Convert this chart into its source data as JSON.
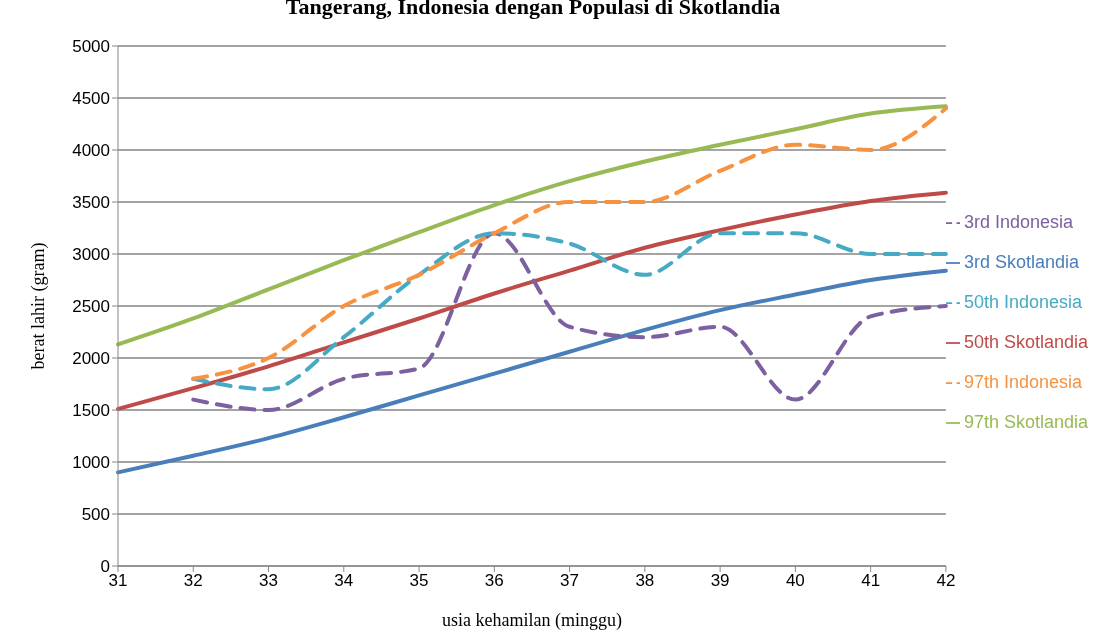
{
  "chart_data": {
    "type": "line",
    "title": "Tangerang, Indonesia dengan Populasi di Skotlandia",
    "xlabel": "usia kehamilan (minggu)",
    "ylabel": "berat lahir (gram)",
    "categories": [
      "31",
      "32",
      "33",
      "34",
      "35",
      "36",
      "37",
      "38",
      "39",
      "40",
      "41",
      "42"
    ],
    "series": [
      {
        "name": "3rd Skotlandia",
        "color": "#4a7ebb",
        "line_style": "solid",
        "values": [
          900,
          1060,
          1230,
          1430,
          1640,
          1850,
          2060,
          2270,
          2460,
          2610,
          2750,
          2840
        ]
      },
      {
        "name": "50th Skotlandia",
        "color": "#be4b48",
        "line_style": "solid",
        "values": [
          1510,
          1710,
          1920,
          2150,
          2380,
          2620,
          2840,
          3060,
          3230,
          3380,
          3510,
          3590
        ]
      },
      {
        "name": "97th Skotlandia",
        "color": "#98b954",
        "line_style": "solid",
        "values": [
          2130,
          2380,
          2660,
          2940,
          3210,
          3470,
          3700,
          3890,
          4050,
          4200,
          4350,
          4420
        ]
      },
      {
        "name": "3rd Indonesia",
        "color": "#7d60a0",
        "line_style": "dashed",
        "values": [
          null,
          1600,
          1500,
          1800,
          1900,
          3200,
          2300,
          2200,
          2300,
          1600,
          2400,
          2500
        ]
      },
      {
        "name": "50th Indonesia",
        "color": "#46aac5",
        "line_style": "dashed",
        "values": [
          null,
          1800,
          1700,
          2200,
          2800,
          3200,
          3100,
          2800,
          3200,
          3200,
          3000,
          3000
        ]
      },
      {
        "name": "97th Indonesia",
        "color": "#f69240",
        "line_style": "dashed",
        "values": [
          null,
          1800,
          2000,
          2500,
          2800,
          3200,
          3500,
          3500,
          3800,
          4050,
          4000,
          4400
        ]
      }
    ],
    "ylim": [
      0,
      5000
    ],
    "yticks": [
      0,
      500,
      1000,
      1500,
      2000,
      2500,
      3000,
      3500,
      4000,
      4500,
      5000
    ],
    "grid": "y",
    "legend": "right",
    "marker": "none"
  }
}
